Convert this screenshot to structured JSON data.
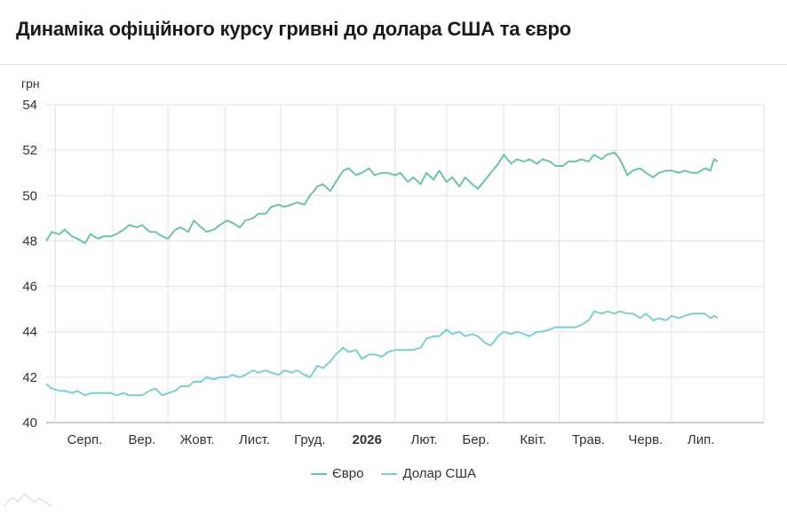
{
  "title": "Динаміка офіційного курсу гривні до долара США та євро",
  "chart_data": {
    "type": "line",
    "ylabel": "грн",
    "ylim": [
      40,
      54
    ],
    "yticks": [
      40,
      42,
      44,
      46,
      48,
      50,
      52,
      54
    ],
    "xlim": [
      "2025-07-27",
      "2026-08-20"
    ],
    "xtick_labels": [
      {
        "label": "Серп.",
        "date": "2025-08-01",
        "bold": false
      },
      {
        "label": "Вер.",
        "date": "2025-09-01",
        "bold": false
      },
      {
        "label": "Жовт.",
        "date": "2025-10-01",
        "bold": false
      },
      {
        "label": "Лист.",
        "date": "2025-11-01",
        "bold": false
      },
      {
        "label": "Груд.",
        "date": "2025-12-01",
        "bold": false
      },
      {
        "label": "2026",
        "date": "2026-01-01",
        "bold": true
      },
      {
        "label": "Лют.",
        "date": "2026-02-01",
        "bold": false
      },
      {
        "label": "Бер.",
        "date": "2026-03-01",
        "bold": false
      },
      {
        "label": "Квіт.",
        "date": "2026-04-01",
        "bold": false
      },
      {
        "label": "Трав.",
        "date": "2026-05-01",
        "bold": false
      },
      {
        "label": "Черв.",
        "date": "2026-06-01",
        "bold": false
      },
      {
        "label": "Лип.",
        "date": "2026-07-01",
        "bold": false
      }
    ],
    "grid": true,
    "legend_position": "bottom",
    "series": [
      {
        "name": "Євро",
        "color": "#6cc5a0",
        "points": [
          [
            "2025-07-27",
            48.0
          ],
          [
            "2025-07-30",
            48.4
          ],
          [
            "2025-08-03",
            48.3
          ],
          [
            "2025-08-06",
            48.5
          ],
          [
            "2025-08-10",
            48.2
          ],
          [
            "2025-08-13",
            48.1
          ],
          [
            "2025-08-17",
            47.9
          ],
          [
            "2025-08-20",
            48.3
          ],
          [
            "2025-08-24",
            48.1
          ],
          [
            "2025-08-27",
            48.2
          ],
          [
            "2025-08-31",
            48.2
          ],
          [
            "2025-09-03",
            48.3
          ],
          [
            "2025-09-07",
            48.5
          ],
          [
            "2025-09-10",
            48.7
          ],
          [
            "2025-09-14",
            48.6
          ],
          [
            "2025-09-17",
            48.7
          ],
          [
            "2025-09-21",
            48.4
          ],
          [
            "2025-09-24",
            48.4
          ],
          [
            "2025-09-28",
            48.2
          ],
          [
            "2025-10-01",
            48.1
          ],
          [
            "2025-10-05",
            48.5
          ],
          [
            "2025-10-08",
            48.6
          ],
          [
            "2025-10-12",
            48.4
          ],
          [
            "2025-10-15",
            48.9
          ],
          [
            "2025-10-19",
            48.6
          ],
          [
            "2025-10-22",
            48.4
          ],
          [
            "2025-10-26",
            48.5
          ],
          [
            "2025-10-29",
            48.7
          ],
          [
            "2025-11-02",
            48.9
          ],
          [
            "2025-11-05",
            48.8
          ],
          [
            "2025-11-09",
            48.6
          ],
          [
            "2025-11-12",
            48.9
          ],
          [
            "2025-11-16",
            49.0
          ],
          [
            "2025-11-19",
            49.2
          ],
          [
            "2025-11-23",
            49.2
          ],
          [
            "2025-11-26",
            49.5
          ],
          [
            "2025-11-30",
            49.6
          ],
          [
            "2025-12-03",
            49.5
          ],
          [
            "2025-12-07",
            49.6
          ],
          [
            "2025-12-10",
            49.7
          ],
          [
            "2025-12-14",
            49.6
          ],
          [
            "2025-12-17",
            50.0
          ],
          [
            "2025-12-21",
            50.4
          ],
          [
            "2025-12-24",
            50.5
          ],
          [
            "2025-12-28",
            50.2
          ],
          [
            "2025-12-31",
            50.6
          ],
          [
            "2026-01-04",
            51.1
          ],
          [
            "2026-01-07",
            51.2
          ],
          [
            "2026-01-11",
            50.9
          ],
          [
            "2026-01-14",
            51.0
          ],
          [
            "2026-01-18",
            51.2
          ],
          [
            "2026-01-21",
            50.9
          ],
          [
            "2026-01-25",
            51.0
          ],
          [
            "2026-01-28",
            51.0
          ],
          [
            "2026-02-01",
            50.9
          ],
          [
            "2026-02-04",
            51.0
          ],
          [
            "2026-02-08",
            50.6
          ],
          [
            "2026-02-11",
            50.8
          ],
          [
            "2026-02-15",
            50.5
          ],
          [
            "2026-02-18",
            51.0
          ],
          [
            "2026-02-22",
            50.7
          ],
          [
            "2026-02-25",
            51.1
          ],
          [
            "2026-03-01",
            50.6
          ],
          [
            "2026-03-04",
            50.8
          ],
          [
            "2026-03-08",
            50.4
          ],
          [
            "2026-03-11",
            50.8
          ],
          [
            "2026-03-15",
            50.5
          ],
          [
            "2026-03-18",
            50.3
          ],
          [
            "2026-03-22",
            50.7
          ],
          [
            "2026-03-25",
            51.0
          ],
          [
            "2026-03-29",
            51.4
          ],
          [
            "2026-04-01",
            51.8
          ],
          [
            "2026-04-05",
            51.4
          ],
          [
            "2026-04-08",
            51.6
          ],
          [
            "2026-04-12",
            51.5
          ],
          [
            "2026-04-15",
            51.6
          ],
          [
            "2026-04-19",
            51.4
          ],
          [
            "2026-04-22",
            51.6
          ],
          [
            "2026-04-26",
            51.5
          ],
          [
            "2026-04-29",
            51.3
          ],
          [
            "2026-05-03",
            51.3
          ],
          [
            "2026-05-06",
            51.5
          ],
          [
            "2026-05-10",
            51.5
          ],
          [
            "2026-05-13",
            51.6
          ],
          [
            "2026-05-17",
            51.5
          ],
          [
            "2026-05-20",
            51.8
          ],
          [
            "2026-05-24",
            51.6
          ],
          [
            "2026-05-27",
            51.8
          ],
          [
            "2026-05-31",
            51.9
          ],
          [
            "2026-06-03",
            51.6
          ],
          [
            "2026-06-07",
            50.9
          ],
          [
            "2026-06-10",
            51.1
          ],
          [
            "2026-06-14",
            51.2
          ],
          [
            "2026-06-17",
            51.0
          ],
          [
            "2026-06-21",
            50.8
          ],
          [
            "2026-06-24",
            51.0
          ],
          [
            "2026-06-28",
            51.1
          ],
          [
            "2026-07-01",
            51.1
          ],
          [
            "2026-07-05",
            51.0
          ],
          [
            "2026-07-08",
            51.1
          ],
          [
            "2026-07-12",
            51.0
          ],
          [
            "2026-07-15",
            51.0
          ],
          [
            "2026-07-19",
            51.2
          ],
          [
            "2026-07-22",
            51.1
          ],
          [
            "2026-07-24",
            51.6
          ],
          [
            "2026-07-26",
            51.5
          ]
        ]
      },
      {
        "name": "Долар США",
        "color": "#79d0cf",
        "points": [
          [
            "2025-07-27",
            41.7
          ],
          [
            "2025-07-30",
            41.5
          ],
          [
            "2025-08-03",
            41.4
          ],
          [
            "2025-08-06",
            41.4
          ],
          [
            "2025-08-10",
            41.3
          ],
          [
            "2025-08-13",
            41.4
          ],
          [
            "2025-08-17",
            41.2
          ],
          [
            "2025-08-20",
            41.3
          ],
          [
            "2025-08-24",
            41.3
          ],
          [
            "2025-08-27",
            41.3
          ],
          [
            "2025-08-31",
            41.3
          ],
          [
            "2025-09-03",
            41.2
          ],
          [
            "2025-09-07",
            41.3
          ],
          [
            "2025-09-10",
            41.2
          ],
          [
            "2025-09-14",
            41.2
          ],
          [
            "2025-09-17",
            41.2
          ],
          [
            "2025-09-21",
            41.4
          ],
          [
            "2025-09-24",
            41.5
          ],
          [
            "2025-09-28",
            41.2
          ],
          [
            "2025-10-01",
            41.3
          ],
          [
            "2025-10-05",
            41.4
          ],
          [
            "2025-10-08",
            41.6
          ],
          [
            "2025-10-12",
            41.6
          ],
          [
            "2025-10-15",
            41.8
          ],
          [
            "2025-10-19",
            41.8
          ],
          [
            "2025-10-22",
            42.0
          ],
          [
            "2025-10-26",
            41.9
          ],
          [
            "2025-10-29",
            42.0
          ],
          [
            "2025-11-02",
            42.0
          ],
          [
            "2025-11-05",
            42.1
          ],
          [
            "2025-11-09",
            42.0
          ],
          [
            "2025-11-12",
            42.1
          ],
          [
            "2025-11-16",
            42.3
          ],
          [
            "2025-11-19",
            42.2
          ],
          [
            "2025-11-23",
            42.3
          ],
          [
            "2025-11-26",
            42.2
          ],
          [
            "2025-11-30",
            42.1
          ],
          [
            "2025-12-03",
            42.3
          ],
          [
            "2025-12-07",
            42.2
          ],
          [
            "2025-12-10",
            42.3
          ],
          [
            "2025-12-14",
            42.1
          ],
          [
            "2025-12-17",
            42.0
          ],
          [
            "2025-12-21",
            42.5
          ],
          [
            "2025-12-24",
            42.4
          ],
          [
            "2025-12-28",
            42.7
          ],
          [
            "2025-12-31",
            43.0
          ],
          [
            "2026-01-04",
            43.3
          ],
          [
            "2026-01-07",
            43.1
          ],
          [
            "2026-01-11",
            43.2
          ],
          [
            "2026-01-14",
            42.8
          ],
          [
            "2026-01-18",
            43.0
          ],
          [
            "2026-01-21",
            43.0
          ],
          [
            "2026-01-25",
            42.9
          ],
          [
            "2026-01-28",
            43.1
          ],
          [
            "2026-02-01",
            43.2
          ],
          [
            "2026-02-04",
            43.2
          ],
          [
            "2026-02-08",
            43.2
          ],
          [
            "2026-02-11",
            43.2
          ],
          [
            "2026-02-15",
            43.3
          ],
          [
            "2026-02-18",
            43.7
          ],
          [
            "2026-02-22",
            43.8
          ],
          [
            "2026-02-25",
            43.8
          ],
          [
            "2026-03-01",
            44.1
          ],
          [
            "2026-03-04",
            43.9
          ],
          [
            "2026-03-08",
            44.0
          ],
          [
            "2026-03-11",
            43.8
          ],
          [
            "2026-03-15",
            43.9
          ],
          [
            "2026-03-18",
            43.8
          ],
          [
            "2026-03-22",
            43.5
          ],
          [
            "2026-03-25",
            43.4
          ],
          [
            "2026-03-29",
            43.8
          ],
          [
            "2026-04-01",
            44.0
          ],
          [
            "2026-04-05",
            43.9
          ],
          [
            "2026-04-08",
            44.0
          ],
          [
            "2026-04-12",
            43.9
          ],
          [
            "2026-04-15",
            43.8
          ],
          [
            "2026-04-19",
            44.0
          ],
          [
            "2026-04-22",
            44.0
          ],
          [
            "2026-04-26",
            44.1
          ],
          [
            "2026-04-29",
            44.2
          ],
          [
            "2026-05-03",
            44.2
          ],
          [
            "2026-05-06",
            44.2
          ],
          [
            "2026-05-10",
            44.2
          ],
          [
            "2026-05-13",
            44.3
          ],
          [
            "2026-05-17",
            44.5
          ],
          [
            "2026-05-20",
            44.9
          ],
          [
            "2026-05-24",
            44.8
          ],
          [
            "2026-05-27",
            44.9
          ],
          [
            "2026-05-31",
            44.8
          ],
          [
            "2026-06-03",
            44.9
          ],
          [
            "2026-06-07",
            44.8
          ],
          [
            "2026-06-10",
            44.8
          ],
          [
            "2026-06-14",
            44.6
          ],
          [
            "2026-06-17",
            44.8
          ],
          [
            "2026-06-21",
            44.5
          ],
          [
            "2026-06-24",
            44.6
          ],
          [
            "2026-06-28",
            44.5
          ],
          [
            "2026-07-01",
            44.7
          ],
          [
            "2026-07-05",
            44.6
          ],
          [
            "2026-07-08",
            44.7
          ],
          [
            "2026-07-12",
            44.8
          ],
          [
            "2026-07-15",
            44.8
          ],
          [
            "2026-07-19",
            44.8
          ],
          [
            "2026-07-22",
            44.6
          ],
          [
            "2026-07-24",
            44.7
          ],
          [
            "2026-07-26",
            44.6
          ]
        ]
      }
    ]
  }
}
